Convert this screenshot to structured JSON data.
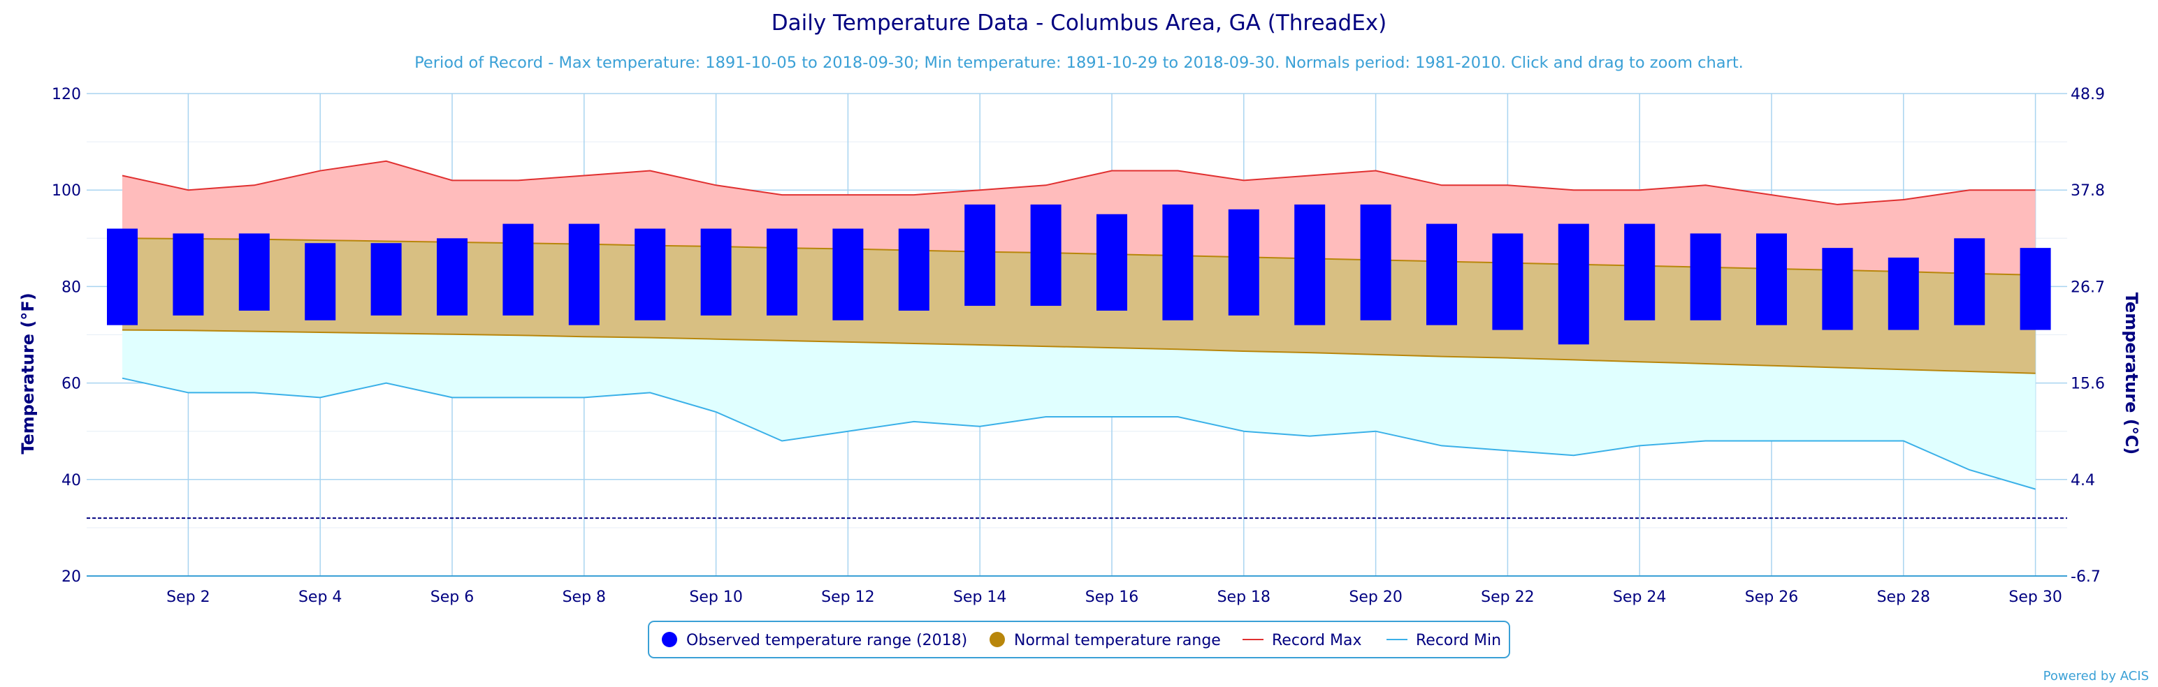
{
  "chart_data": {
    "type": "bar",
    "title": "Daily Temperature Data - Columbus Area, GA (ThreadEx)",
    "subtitle": "Period of Record - Max temperature: 1891-10-05 to 2018-09-30; Min temperature: 1891-10-29 to 2018-09-30. Normals period: 1981-2010. Click and drag to zoom chart.",
    "ylabel": "Temperature (°F)",
    "ylabel_right": "Temperature (°C)",
    "ylim": [
      20,
      120
    ],
    "y_ticks": [
      "20",
      "40",
      "60",
      "80",
      "100",
      "120"
    ],
    "y_ticks_right": [
      "-6.7",
      "4.4",
      "15.6",
      "26.7",
      "37.8",
      "48.9"
    ],
    "x_tick_labels": [
      "Sep 2",
      "Sep 4",
      "Sep 6",
      "Sep 8",
      "Sep 10",
      "Sep 12",
      "Sep 14",
      "Sep 16",
      "Sep 18",
      "Sep 20",
      "Sep 22",
      "Sep 24",
      "Sep 26",
      "Sep 28",
      "Sep 30"
    ],
    "days": [
      1,
      2,
      3,
      4,
      5,
      6,
      7,
      8,
      9,
      10,
      11,
      12,
      13,
      14,
      15,
      16,
      17,
      18,
      19,
      20,
      21,
      22,
      23,
      24,
      25,
      26,
      27,
      28,
      29,
      30
    ],
    "observed_high": [
      92,
      91,
      91,
      89,
      89,
      90,
      93,
      93,
      92,
      92,
      92,
      92,
      92,
      97,
      97,
      95,
      97,
      96,
      97,
      97,
      93,
      91,
      93,
      93,
      91,
      91,
      88,
      86,
      90,
      88
    ],
    "observed_low": [
      72,
      74,
      75,
      73,
      74,
      74,
      74,
      72,
      73,
      74,
      74,
      73,
      75,
      76,
      76,
      75,
      73,
      74,
      72,
      73,
      72,
      71,
      68,
      73,
      73,
      72,
      71,
      71,
      72,
      71
    ],
    "normal_high": [
      90,
      89.9,
      89.8,
      89.6,
      89.4,
      89.2,
      89,
      88.8,
      88.5,
      88.3,
      88,
      87.8,
      87.5,
      87.2,
      87,
      86.7,
      86.4,
      86.1,
      85.8,
      85.5,
      85.2,
      84.9,
      84.6,
      84.3,
      84,
      83.7,
      83.4,
      83.1,
      82.7,
      82.4
    ],
    "normal_low": [
      71,
      70.9,
      70.7,
      70.5,
      70.3,
      70.1,
      69.9,
      69.6,
      69.4,
      69.1,
      68.8,
      68.5,
      68.2,
      67.9,
      67.6,
      67.3,
      67,
      66.6,
      66.3,
      65.9,
      65.5,
      65.2,
      64.8,
      64.4,
      64,
      63.6,
      63.2,
      62.8,
      62.4,
      62
    ],
    "record_max": [
      103,
      100,
      101,
      104,
      106,
      102,
      102,
      103,
      104,
      101,
      99,
      99,
      99,
      100,
      101,
      104,
      104,
      102,
      103,
      104,
      101,
      101,
      100,
      100,
      101,
      99,
      97,
      98,
      100,
      100
    ],
    "record_min": [
      61,
      58,
      58,
      57,
      60,
      57,
      57,
      57,
      58,
      54,
      48,
      50,
      52,
      51,
      53,
      53,
      53,
      50,
      49,
      50,
      47,
      46,
      45,
      47,
      48,
      48,
      48,
      48,
      42,
      38
    ],
    "freezing_line": 32,
    "legend": {
      "position": "bottom-center",
      "items": [
        {
          "label": "Observed temperature range (2018)",
          "symbol": "circle",
          "color": "#0000ff"
        },
        {
          "label": "Normal temperature range",
          "symbol": "circle",
          "color": "#b8860b"
        },
        {
          "label": "Record Max",
          "symbol": "line",
          "color": "#e03030"
        },
        {
          "label": "Record Min",
          "symbol": "line",
          "color": "#3ab0e8"
        }
      ]
    },
    "colors": {
      "observed": "#0000ff",
      "normal_fill": "#d8bf82",
      "normal_line": "#b8860b",
      "record_max_fill": "#ffbcbc",
      "record_max_line": "#e03030",
      "record_min_fill": "#e0ffff",
      "record_min_line": "#3ab0e8",
      "grid": "#a8d4f0",
      "freezing": "#000080"
    },
    "grid": true
  },
  "credits": "Powered by ACIS"
}
